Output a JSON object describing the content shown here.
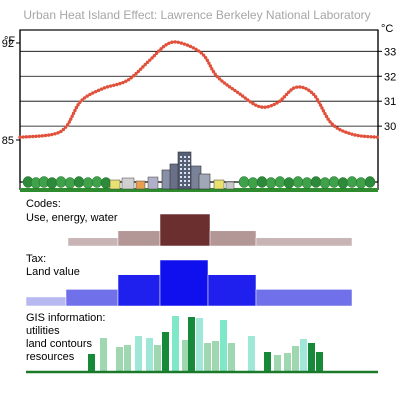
{
  "title": "Urban Heat Island Effect: Lawrence Berkeley National Laboratory",
  "chart_data": {
    "type": "line",
    "series": [
      {
        "values": [
          {
            "x": 0.0,
            "y": 85.2
          },
          {
            "x": 0.09,
            "y": 85.4
          },
          {
            "x": 0.13,
            "y": 86.0
          },
          {
            "x": 0.17,
            "y": 87.8
          },
          {
            "x": 0.23,
            "y": 88.7
          },
          {
            "x": 0.3,
            "y": 89.3
          },
          {
            "x": 0.36,
            "y": 90.7
          },
          {
            "x": 0.41,
            "y": 91.9
          },
          {
            "x": 0.45,
            "y": 92.0
          },
          {
            "x": 0.51,
            "y": 91.2
          },
          {
            "x": 0.55,
            "y": 89.6
          },
          {
            "x": 0.61,
            "y": 88.4
          },
          {
            "x": 0.67,
            "y": 87.4
          },
          {
            "x": 0.72,
            "y": 87.7
          },
          {
            "x": 0.77,
            "y": 88.8
          },
          {
            "x": 0.82,
            "y": 88.3
          },
          {
            "x": 0.87,
            "y": 86.2
          },
          {
            "x": 0.93,
            "y": 85.4
          },
          {
            "x": 1.0,
            "y": 85.2
          }
        ]
      }
    ],
    "left_axis": {
      "unit": "°F",
      "ticks": [
        92,
        85
      ]
    },
    "right_axis": {
      "unit": "°C",
      "ticks": [
        33,
        32,
        31,
        30
      ]
    },
    "grid": true
  },
  "sections": {
    "codes": {
      "label_lines": [
        "Codes:",
        "Use, energy, water"
      ],
      "color": "#6b2f2f",
      "levels": [
        0.15,
        0.4,
        1.0,
        0.4,
        0.15
      ]
    },
    "tax": {
      "label_lines": [
        "Tax:",
        "Land value"
      ],
      "color": "#1010ee",
      "levels": [
        0.12,
        0.3,
        0.65,
        1.0,
        0.65,
        0.3
      ]
    },
    "gis": {
      "label_lines": [
        "GIS information:",
        "utilities",
        "land contours",
        "resources"
      ]
    }
  }
}
